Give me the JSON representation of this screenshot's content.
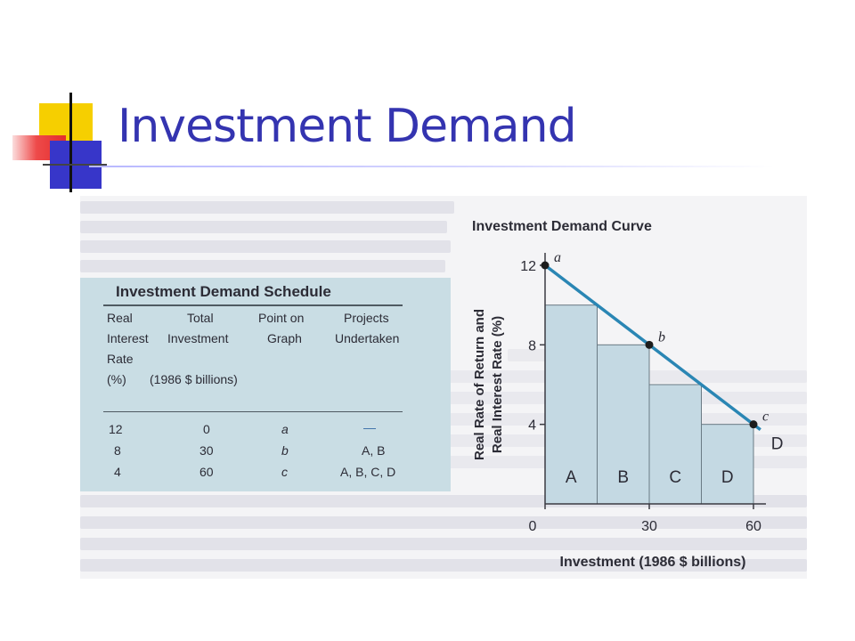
{
  "slide": {
    "title": "Investment Demand"
  },
  "schedule": {
    "title": "Investment Demand Schedule",
    "headers": [
      [
        "Real",
        "Interest",
        "Rate",
        "(%)"
      ],
      [
        "Total",
        "Investment",
        "(1986 $ billions)"
      ],
      [
        "Point on",
        "Graph"
      ],
      [
        "Projects",
        "Undertaken"
      ]
    ],
    "rows": [
      {
        "rate": "12",
        "investment": "0",
        "point": "a",
        "projects": "—"
      },
      {
        "rate": "8",
        "investment": "30",
        "point": "b",
        "projects": "A, B"
      },
      {
        "rate": "4",
        "investment": "60",
        "point": "c",
        "projects": "A, B, C, D"
      }
    ]
  },
  "chart_data": {
    "type": "line",
    "title": "Investment Demand Curve",
    "xlabel": "Investment (1986 $ billions)",
    "ylabel": "Real Rate of Return and Real Interest Rate (%)",
    "x_ticks": [
      "0",
      "30",
      "60"
    ],
    "y_ticks": [
      "4",
      "8",
      "12"
    ],
    "xlim": [
      0,
      60
    ],
    "ylim": [
      0,
      12
    ],
    "series": [
      {
        "name": "D",
        "x": [
          0,
          30,
          60
        ],
        "y": [
          12,
          8,
          4
        ]
      }
    ],
    "points": [
      {
        "label": "a",
        "x": 0,
        "y": 12
      },
      {
        "label": "b",
        "x": 30,
        "y": 8
      },
      {
        "label": "c",
        "x": 60,
        "y": 4
      }
    ],
    "bars": [
      {
        "label": "A",
        "x_start": 0,
        "x_end": 15,
        "value": 10
      },
      {
        "label": "B",
        "x_start": 15,
        "x_end": 30,
        "value": 8
      },
      {
        "label": "C",
        "x_start": 30,
        "x_end": 45,
        "value": 6
      },
      {
        "label": "D",
        "x_start": 45,
        "x_end": 60,
        "value": 4
      }
    ],
    "colors": {
      "line": "#2a86b4",
      "bar_fill": "#c4d9e3",
      "point": "#1c1c1c"
    }
  }
}
